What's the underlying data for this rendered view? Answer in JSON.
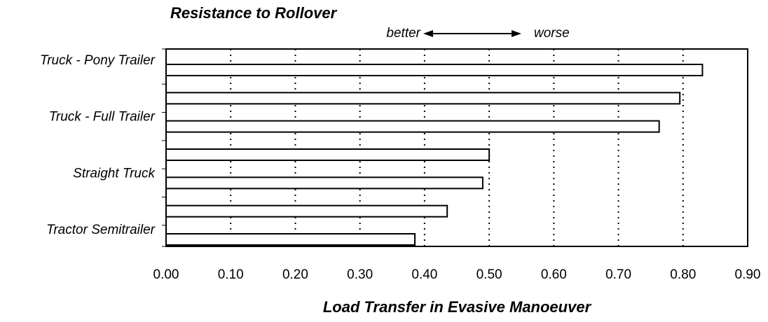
{
  "chart_data": {
    "type": "hbar",
    "title": "Resistance to Rollover",
    "annotations": [
      "better",
      "worse"
    ],
    "x_label": "Load Transfer in Evasive Manoeuver",
    "categories": [
      "Truck - Pony Trailer",
      null,
      "Truck - Full Trailer",
      null,
      "Straight Truck",
      null,
      "Tractor Semitrailer"
    ],
    "values": [
      0.83,
      0.795,
      0.763,
      0.5,
      0.49,
      0.435,
      0.385
    ],
    "color": "#ffffff",
    "xlim": [
      0,
      0.9
    ],
    "xticks": [
      {
        "value": 0,
        "label": "0.00"
      },
      {
        "value": 0.1,
        "label": "0.10"
      },
      {
        "value": 0.2,
        "label": "0.20"
      },
      {
        "value": 0.3,
        "label": "0.30"
      },
      {
        "value": 0.4,
        "label": "0.40"
      },
      {
        "value": 0.5,
        "label": "0.50"
      },
      {
        "value": 0.6,
        "label": "0.60"
      },
      {
        "value": 0.7,
        "label": "0.70"
      },
      {
        "value": 0.8,
        "label": "0.80"
      },
      {
        "value": 0.9,
        "label": "0.90"
      }
    ],
    "grid": true
  }
}
